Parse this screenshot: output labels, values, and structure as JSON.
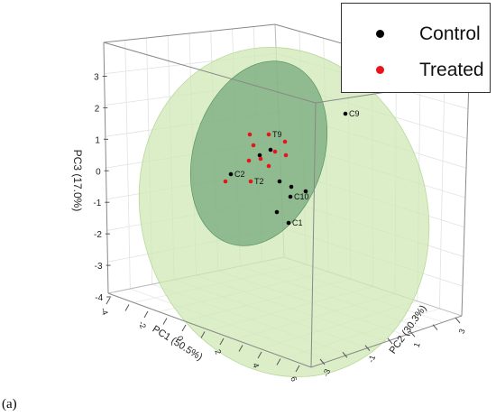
{
  "panel_label": "(a)",
  "chart_data": {
    "type": "scatter",
    "projection": "3d",
    "axes": {
      "x": {
        "label": "PC1 (50.5%)",
        "ticks": [
          "-4",
          "-3",
          "-2",
          "-1",
          "0",
          "1",
          "2",
          "3",
          "4",
          "5",
          "6"
        ]
      },
      "y": {
        "label": "PC2 (30.3%)",
        "ticks": [
          "-3",
          "-2",
          "-1",
          "0",
          "1",
          "2",
          "3"
        ]
      },
      "z": {
        "label": "PC3 (17.0%)",
        "ticks": [
          "-4",
          "-3",
          "-2",
          "-1",
          "0",
          "1",
          "2",
          "3"
        ],
        "range": [
          -4,
          3.3
        ]
      }
    },
    "grid": true,
    "legend": {
      "placement": "top-right"
    },
    "colors": {
      "control": "#000000",
      "treated": "#e8141a",
      "outer_ellipse": "#cfe8b6",
      "inner_ellipse": "#5d9a6a"
    },
    "series": [
      {
        "name": "Control",
        "color": "#000000",
        "points": [
          {
            "label": "C9"
          },
          {
            "label": "C10"
          },
          {
            "label": "C1"
          },
          {
            "label": "C2"
          },
          {
            "label": ""
          },
          {
            "label": ""
          },
          {
            "label": ""
          },
          {
            "label": ""
          },
          {
            "label": ""
          },
          {
            "label": ""
          }
        ]
      },
      {
        "name": "Treated",
        "color": "#e8141a",
        "points": [
          {
            "label": "T9"
          },
          {
            "label": "T2"
          },
          {
            "label": ""
          },
          {
            "label": ""
          },
          {
            "label": ""
          },
          {
            "label": ""
          },
          {
            "label": ""
          },
          {
            "label": ""
          },
          {
            "label": ""
          },
          {
            "label": ""
          },
          {
            "label": ""
          }
        ]
      }
    ]
  }
}
